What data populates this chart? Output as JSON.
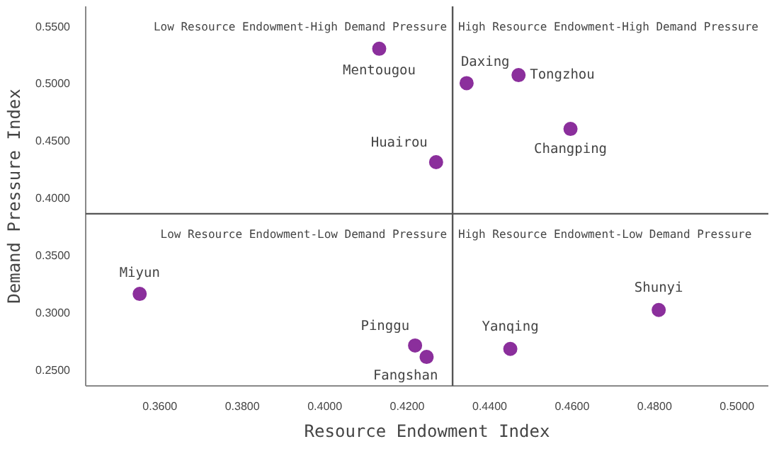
{
  "chart_data": {
    "type": "scatter",
    "xlabel": "Resource Endowment Index",
    "ylabel": "Demand Pressure Index",
    "x": [
      0.4132,
      0.4344,
      0.447,
      0.4596,
      0.427,
      0.3551,
      0.4219,
      0.4247,
      0.445,
      0.481
    ],
    "series": [
      {
        "color": "#8b2f9c",
        "values": [
          0.53,
          0.5,
          0.507,
          0.46,
          0.431,
          0.316,
          0.271,
          0.261,
          0.268,
          0.302
        ]
      }
    ],
    "marker": "circle",
    "grid": false,
    "xlim": [
      0.342,
      0.5076
    ],
    "ylim": [
      0.2357,
      0.567
    ],
    "xticks": [
      {
        "value": 0.36,
        "label": "0.3600"
      },
      {
        "value": 0.38,
        "label": "0.3800"
      },
      {
        "value": 0.4,
        "label": "0.4000"
      },
      {
        "value": 0.42,
        "label": "0.4200"
      },
      {
        "value": 0.44,
        "label": "0.4400"
      },
      {
        "value": 0.46,
        "label": "0.4600"
      },
      {
        "value": 0.48,
        "label": "0.4800"
      },
      {
        "value": 0.5,
        "label": "0.5000"
      }
    ],
    "yticks": [
      {
        "value": 0.25,
        "label": "0.2500"
      },
      {
        "value": 0.3,
        "label": "0.3000"
      },
      {
        "value": 0.35,
        "label": "0.3500"
      },
      {
        "value": 0.4,
        "label": "0.4000"
      },
      {
        "value": 0.45,
        "label": "0.4500"
      },
      {
        "value": 0.5,
        "label": "0.5000"
      },
      {
        "value": 0.55,
        "label": "0.5500"
      }
    ],
    "ref_lines": [
      {
        "axis": "x",
        "value": 0.431,
        "color": "#555555"
      },
      {
        "axis": "y",
        "value": 0.386,
        "color": "#555555"
      }
    ],
    "annotations": [
      {
        "text": "Mentougou",
        "x": 0.4132,
        "y": 0.53
      },
      {
        "text": "Daxing",
        "x": 0.4344,
        "y": 0.5
      },
      {
        "text": "Tongzhou",
        "x": 0.447,
        "y": 0.507
      },
      {
        "text": "Changping",
        "x": 0.4596,
        "y": 0.46
      },
      {
        "text": "Huairou",
        "x": 0.427,
        "y": 0.431
      },
      {
        "text": "Miyun",
        "x": 0.3551,
        "y": 0.316
      },
      {
        "text": "Pinggu",
        "x": 0.4219,
        "y": 0.271
      },
      {
        "text": "Fangshan",
        "x": 0.4247,
        "y": 0.261
      },
      {
        "text": "Yanqing",
        "x": 0.445,
        "y": 0.268
      },
      {
        "text": "Shunyi",
        "x": 0.481,
        "y": 0.302
      },
      "Low Resource Endowment-High Demand Pressure",
      "High Resource Endowment-High Demand Pressure",
      "Low Resource Endowment-Low Demand Pressure",
      "High Resource Endowment-Low Demand Pressure"
    ]
  }
}
